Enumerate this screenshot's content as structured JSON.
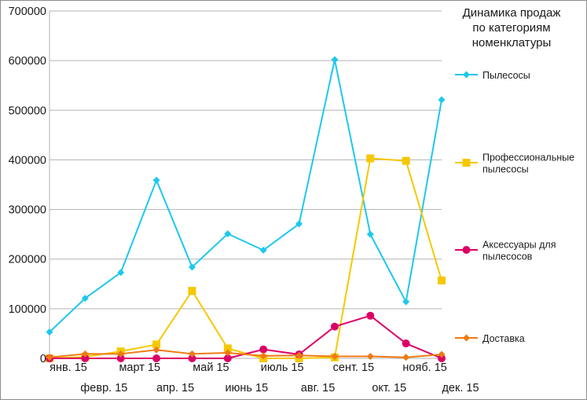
{
  "chart_data": {
    "type": "line",
    "title": [
      "Динамика продаж",
      "по категориям",
      "номенклатуры"
    ],
    "xlabel": "",
    "ylabel": "",
    "categories": [
      "янв. 15",
      "февр. 15",
      "март 15",
      "апр. 15",
      "май 15",
      "июнь 15",
      "июль 15",
      "авг. 15",
      "сент. 15",
      "окт. 15",
      "нояб. 15",
      "дек. 15"
    ],
    "y_ticks": [
      "0",
      "100000",
      "200000",
      "300000",
      "400000",
      "500000",
      "600000",
      "700000"
    ],
    "ylim": [
      0,
      700000
    ],
    "grid": "horizontal",
    "legend_position": "right",
    "series": [
      {
        "name": "Пылесосы",
        "color": "#1ec8ec",
        "marker": "diamond",
        "values": [
          53000,
          121000,
          173000,
          359000,
          184000,
          251000,
          218000,
          271000,
          602000,
          250000,
          114000,
          521000
        ]
      },
      {
        "name": [
          "Профессиональные",
          "пылесосы"
        ],
        "color": "#f5c800",
        "marker": "square",
        "values": [
          0,
          3000,
          14000,
          28000,
          136000,
          20000,
          0,
          0,
          2000,
          403000,
          398000,
          157000
        ]
      },
      {
        "name": [
          "Аксессуары для",
          "пылесосов"
        ],
        "color": "#dc0066",
        "marker": "circle",
        "values": [
          0,
          0,
          0,
          0,
          0,
          0,
          18000,
          8000,
          64000,
          86000,
          30000,
          0
        ]
      },
      {
        "name": [
          "Доставка"
        ],
        "color": "#ee7a14",
        "marker": "diamond",
        "values": [
          2000,
          9000,
          9000,
          17000,
          9000,
          11000,
          5000,
          6000,
          4000,
          4000,
          2000,
          8000
        ]
      }
    ]
  }
}
